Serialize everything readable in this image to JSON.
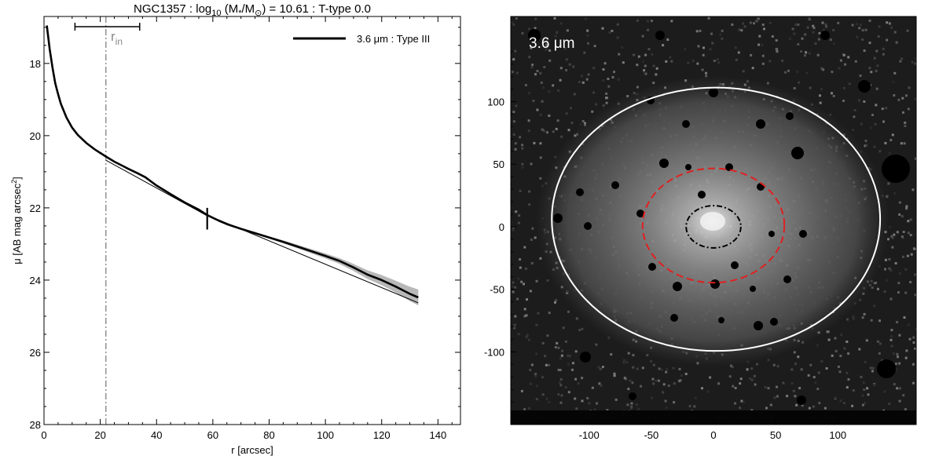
{
  "chart_data": [
    {
      "type": "line",
      "title_parts": [
        "NGC1357 : log",
        "10",
        " (M",
        "*",
        "/M",
        "⊙",
        ") = 10.61 : T-type 0.0"
      ],
      "xlabel": "r [arcsec]",
      "ylabel_parts": [
        "μ [AB mag arcsec",
        "2",
        "]"
      ],
      "xlim": [
        0,
        148
      ],
      "ylim": [
        28,
        16.7
      ],
      "y_inverted": true,
      "xticks": [
        0,
        20,
        40,
        60,
        80,
        100,
        120,
        140
      ],
      "yticks": [
        18,
        20,
        22,
        24,
        26,
        28
      ],
      "legend": {
        "label": "3.6 μm : Type III",
        "position": "top-right"
      },
      "rin": {
        "label": "r",
        "subscript": "in",
        "x": 22,
        "range": [
          11,
          34
        ]
      },
      "break_marker": {
        "r": 58,
        "mu_low": 22.0,
        "mu_high": 22.6
      },
      "series": [
        {
          "role": "profile",
          "r": [
            1,
            2,
            3,
            4,
            5,
            6,
            8,
            10,
            12,
            15,
            18,
            20,
            22,
            25,
            28,
            30,
            33,
            36,
            40,
            45,
            50,
            55,
            58,
            62,
            65,
            70,
            75,
            80,
            85,
            90,
            95,
            100,
            105,
            110,
            115,
            120,
            125,
            130,
            133
          ],
          "mu": [
            16.95,
            17.6,
            18.1,
            18.55,
            18.85,
            19.12,
            19.5,
            19.78,
            19.98,
            20.2,
            20.38,
            20.48,
            20.58,
            20.72,
            20.84,
            20.92,
            21.03,
            21.15,
            21.38,
            21.62,
            21.85,
            22.05,
            22.2,
            22.35,
            22.45,
            22.58,
            22.7,
            22.82,
            22.94,
            23.07,
            23.2,
            23.33,
            23.47,
            23.65,
            23.85,
            24.0,
            24.18,
            24.38,
            24.48
          ],
          "err": [
            0,
            0,
            0,
            0,
            0,
            0,
            0,
            0,
            0,
            0,
            0,
            0,
            0,
            0,
            0,
            0,
            0,
            0,
            0,
            0,
            0.01,
            0.01,
            0.01,
            0.02,
            0.02,
            0.02,
            0.03,
            0.03,
            0.04,
            0.05,
            0.06,
            0.07,
            0.08,
            0.1,
            0.12,
            0.14,
            0.16,
            0.2,
            0.22
          ]
        },
        {
          "role": "inner-fit",
          "r": [
            22,
            58
          ],
          "mu": [
            20.68,
            22.22
          ]
        },
        {
          "role": "outer-fit",
          "r": [
            58,
            133
          ],
          "mu": [
            22.2,
            24.63
          ]
        }
      ]
    },
    {
      "type": "image",
      "label": "3.6 μm",
      "xlim": [
        -163,
        163
      ],
      "ylim": [
        -158,
        168
      ],
      "xticks": [
        -100,
        -50,
        0,
        50,
        100
      ],
      "yticks": [
        -100,
        -50,
        0,
        50,
        100
      ],
      "ellipses": [
        {
          "name": "inner-dashdot",
          "cx": 0,
          "cy": 0,
          "a": 22,
          "b": 17,
          "color": "#000000",
          "style": "dash-dot"
        },
        {
          "name": "break-dashed",
          "cx": 0,
          "cy": 1,
          "a": 57,
          "b": 46,
          "color": "#e02020",
          "style": "dashed"
        },
        {
          "name": "outer-solid",
          "cx": 2,
          "cy": 6,
          "a": 132,
          "b": 106,
          "color": "#ffffff",
          "style": "solid"
        }
      ]
    }
  ]
}
